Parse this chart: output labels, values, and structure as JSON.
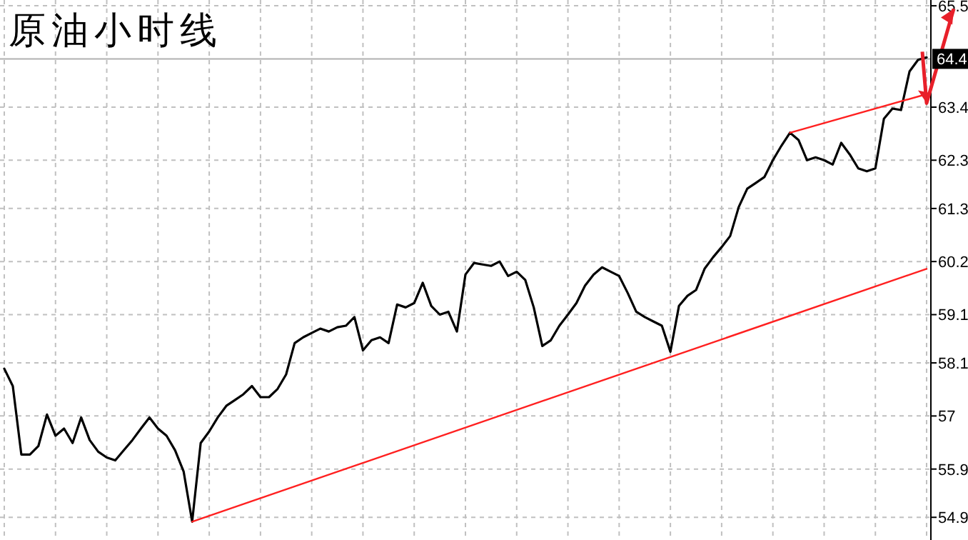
{
  "chart_data": {
    "type": "line",
    "title": "原油小时线",
    "categories": [
      null,
      null,
      null,
      null,
      null,
      null,
      null,
      null,
      null,
      null,
      null,
      null,
      null,
      null,
      null,
      null,
      null,
      null,
      null,
      null,
      null,
      null,
      null,
      null,
      null,
      null,
      null,
      null,
      null,
      null,
      null,
      null,
      null,
      null,
      null,
      null,
      null,
      null,
      null,
      null,
      null,
      null,
      null,
      null,
      null,
      null,
      null,
      null,
      null,
      null,
      null,
      null,
      null,
      null,
      null,
      null,
      null,
      null,
      null,
      null,
      null,
      null,
      null,
      null,
      null,
      null,
      null,
      null,
      null,
      null,
      null,
      null,
      null,
      null,
      null,
      null,
      null,
      null,
      null,
      null,
      null,
      null,
      null,
      null,
      null,
      null,
      null,
      null,
      null,
      null,
      null,
      null,
      null,
      null,
      null,
      null,
      null,
      null,
      null,
      null,
      null,
      null,
      null,
      null,
      null,
      null,
      null,
      null,
      null
    ],
    "series": [
      {
        "color": "#000000",
        "values": [
          57.98,
          57.62,
          56.2,
          56.2,
          56.38,
          57.03,
          56.59,
          56.74,
          56.44,
          56.97,
          56.5,
          56.26,
          56.14,
          56.08,
          56.29,
          56.5,
          56.74,
          56.97,
          56.74,
          56.59,
          56.29,
          55.85,
          54.81,
          56.44,
          56.68,
          56.97,
          57.21,
          57.33,
          57.45,
          57.62,
          57.39,
          57.39,
          57.56,
          57.86,
          58.51,
          58.63,
          58.72,
          58.81,
          58.75,
          58.84,
          58.87,
          59.05,
          58.36,
          58.57,
          58.63,
          58.51,
          59.31,
          59.25,
          59.34,
          59.76,
          59.28,
          59.1,
          59.16,
          58.75,
          59.93,
          60.17,
          60.14,
          60.11,
          60.2,
          59.9,
          59.99,
          59.82,
          59.25,
          58.45,
          58.57,
          58.87,
          59.1,
          59.34,
          59.7,
          59.93,
          60.08,
          59.99,
          59.9,
          59.55,
          59.16,
          59.05,
          58.96,
          58.87,
          58.33,
          59.28,
          59.49,
          59.61,
          60.05,
          60.29,
          60.5,
          60.73,
          61.33,
          61.71,
          61.83,
          61.95,
          62.3,
          62.6,
          62.87,
          62.72,
          62.3,
          62.36,
          62.3,
          62.21,
          62.66,
          62.42,
          62.13,
          62.07,
          62.13,
          63.16,
          63.37,
          63.34,
          64.14,
          64.38,
          64.43
        ]
      },
      {
        "type": "line",
        "color": "#ff2020",
        "values": [
          null,
          null,
          null,
          null,
          null,
          null,
          null,
          null,
          null,
          null,
          null,
          null,
          null,
          null,
          null,
          null,
          null,
          null,
          null,
          null,
          null,
          null,
          54.81,
          null,
          null,
          null,
          null,
          null,
          null,
          null,
          null,
          null,
          null,
          null,
          null,
          null,
          null,
          null,
          null,
          null,
          null,
          null,
          null,
          null,
          null,
          null,
          null,
          null,
          null,
          null,
          null,
          null,
          null,
          null,
          null,
          null,
          null,
          null,
          null,
          null,
          null,
          null,
          null,
          null,
          null,
          null,
          null,
          null,
          null,
          null,
          null,
          null,
          null,
          null,
          null,
          null,
          null,
          null,
          null,
          null,
          null,
          null,
          null,
          null,
          null,
          null,
          null,
          null,
          null,
          null,
          null,
          null,
          null,
          null,
          null,
          null,
          null,
          null,
          null,
          null,
          null,
          null,
          null,
          null,
          null,
          null,
          null,
          null,
          60.05
        ]
      },
      {
        "type": "line",
        "color": "#ff2020",
        "values": [
          null,
          null,
          null,
          null,
          null,
          null,
          null,
          null,
          null,
          null,
          null,
          null,
          null,
          null,
          null,
          null,
          null,
          null,
          null,
          null,
          null,
          null,
          null,
          null,
          null,
          null,
          null,
          null,
          null,
          null,
          null,
          null,
          null,
          null,
          null,
          null,
          null,
          null,
          null,
          null,
          null,
          null,
          null,
          null,
          null,
          null,
          null,
          null,
          null,
          null,
          null,
          null,
          null,
          null,
          null,
          null,
          null,
          null,
          null,
          null,
          null,
          null,
          null,
          null,
          null,
          null,
          null,
          null,
          null,
          null,
          null,
          null,
          null,
          null,
          null,
          null,
          null,
          null,
          null,
          null,
          null,
          null,
          null,
          null,
          null,
          null,
          null,
          null,
          null,
          null,
          null,
          null,
          62.87,
          null,
          null,
          null,
          null,
          null,
          null,
          null,
          null,
          null,
          null,
          null,
          null,
          null,
          null,
          null,
          63.67
        ]
      }
    ],
    "ylim": [
      54.43,
      65.62
    ],
    "yticks": [
      54.9,
      55.9,
      57.0,
      58.1,
      59.1,
      60.2,
      61.3,
      62.3,
      63.4,
      65.5
    ],
    "ref_lines": [
      {
        "axis": "y",
        "value": 64.4,
        "label": "64.4",
        "color": "#b0b0b0"
      }
    ],
    "tick_labels": "y",
    "grid": true
  }
}
